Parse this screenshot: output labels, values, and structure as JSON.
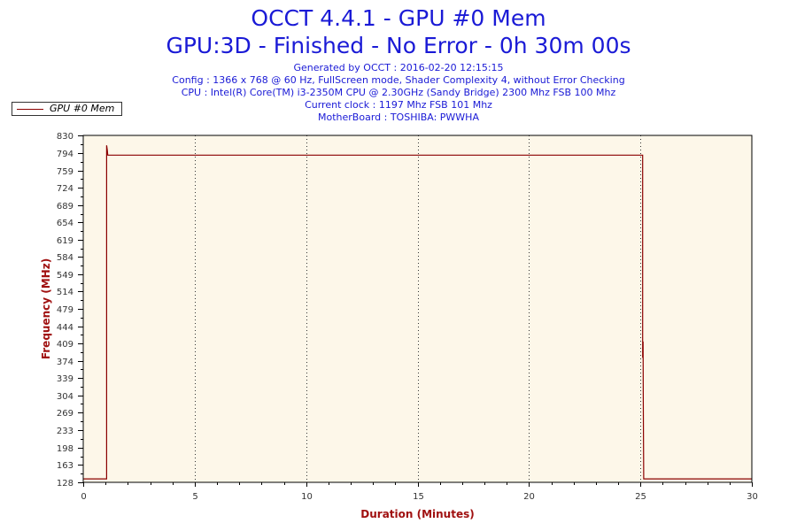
{
  "header": {
    "title_line1": "OCCT 4.4.1 - GPU #0 Mem",
    "title_line2": "GPU:3D - Finished - No Error - 0h 30m 00s",
    "info_lines": [
      "Generated by OCCT : 2016-02-20 12:15:15",
      "Config : 1366 x 768 @ 60 Hz, FullScreen mode, Shader Complexity 4, without Error Checking",
      "CPU : Intel(R) Core(TM) i3-2350M CPU @ 2.30GHz (Sandy Bridge) 2300 Mhz FSB 100 Mhz",
      "Current clock : 1197 Mhz FSB 101 Mhz",
      "MotherBoard : TOSHIBA: PWWHA"
    ]
  },
  "legend": {
    "label": "GPU #0 Mem",
    "placement": "top-left, outside plot"
  },
  "colors": {
    "title": "#1a1ad6",
    "axis_title": "#a01010",
    "series": "#8b0000",
    "plot_background": "#fdf7e9",
    "grid": "#333333"
  },
  "chart_data": {
    "type": "line",
    "title": "OCCT 4.4.1 - GPU #0 Mem",
    "xlabel": "Duration (Minutes)",
    "ylabel": "Frequency (MHz)",
    "xlim": [
      0,
      30
    ],
    "ylim": [
      128,
      830
    ],
    "x_ticks": [
      "0",
      "5",
      "10",
      "15",
      "20",
      "25",
      "30"
    ],
    "y_ticks": [
      "128",
      "163",
      "198",
      "233",
      "269",
      "304",
      "339",
      "374",
      "409",
      "444",
      "479",
      "514",
      "549",
      "584",
      "619",
      "654",
      "689",
      "724",
      "759",
      "794",
      "830"
    ],
    "grid": "dotted vertical lines at major x ticks",
    "series": [
      {
        "name": "GPU #0 Mem",
        "x": [
          0,
          1.05,
          1.05,
          1.08,
          1.1,
          25.1,
          25.1,
          25.12,
          25.13,
          25.15,
          25.15,
          30
        ],
        "y": [
          135,
          135,
          810,
          800,
          790,
          790,
          380,
          413,
          300,
          135,
          135,
          135
        ]
      }
    ]
  }
}
